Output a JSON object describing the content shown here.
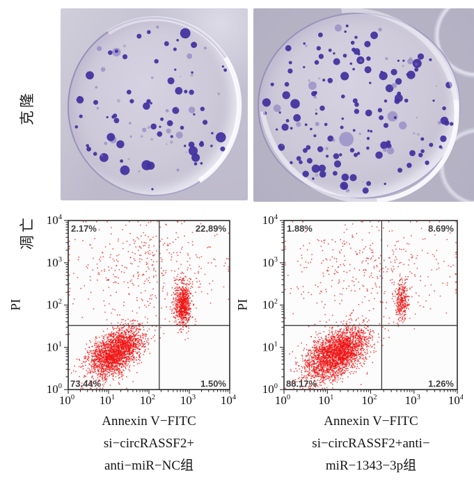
{
  "colors": {
    "colony": "#41309e",
    "colony_light": "#8578c2",
    "scatter_point": "#f11010",
    "axis": "#2b2b2b",
    "gate": "#3a3a3a",
    "quadrant_label": "#3e3e3e",
    "plot_bg": "#fdfcfc",
    "photo_bg": "#b9b6c7",
    "dish_fill": "#ccc8d7"
  },
  "clone_row": {
    "side_label": "克隆",
    "panels": [
      {
        "colony_count": 88,
        "seed": 11
      },
      {
        "colony_count": 158,
        "seed": 29
      }
    ]
  },
  "apoptosis_row": {
    "side_label": "凋亡",
    "tick_exponents": [
      0,
      1,
      2,
      3,
      4
    ],
    "plots": [
      {
        "y_axis_label": "PI",
        "quadrant_labels": {
          "ul": "2.17%",
          "ur": "22.89%",
          "ll": "73.44%",
          "lr": "1.50%"
        },
        "caption_lines": [
          "Annexin V−FITC",
          "si−circRASSF2+",
          "anti−miR−NC组"
        ]
      },
      {
        "y_axis_label": "PI",
        "quadrant_labels": {
          "ul": "1.88%",
          "ur": "8.69%",
          "ll": "88.17%",
          "lr": "1.26%"
        },
        "caption_lines": [
          "Annexin V−FITC",
          "si−circRASSF2+anti−",
          "miR−1343−3p组"
        ]
      }
    ]
  },
  "chart_data": [
    {
      "type": "scatter",
      "title": "si−circRASSF2+anti−miR−NC组",
      "xlabel": "Annexin V−FITC",
      "ylabel": "PI",
      "xscale": "log",
      "yscale": "log",
      "xlim": [
        1,
        10000
      ],
      "ylim": [
        1,
        10000
      ],
      "gates": {
        "x": 180,
        "y": 33
      },
      "quadrant_percentages": {
        "upper_left": 2.17,
        "upper_right": 22.89,
        "lower_left": 73.44,
        "lower_right": 1.5
      },
      "seed": 101,
      "series": [
        {
          "name": "live_cells",
          "center_log10": [
            1.18,
            0.88
          ],
          "sigma_log10": [
            0.34,
            0.3
          ],
          "corr": 0.5,
          "n": 2300
        },
        {
          "name": "late_apoptotic",
          "center_log10": [
            2.84,
            2.02
          ],
          "sigma_log10": [
            0.1,
            0.26
          ],
          "corr": 0,
          "n": 750
        },
        {
          "name": "background_scatter",
          "center_log10": [
            1.9,
            2.9
          ],
          "sigma_log10": [
            1.0,
            0.62
          ],
          "corr": 0,
          "n": 400
        }
      ]
    },
    {
      "type": "scatter",
      "title": "si−circRASSF2+anti−miR−1343−3p组",
      "xlabel": "Annexin V−FITC",
      "ylabel": "PI",
      "xscale": "log",
      "yscale": "log",
      "xlim": [
        1,
        10000
      ],
      "ylim": [
        1,
        10000
      ],
      "gates": {
        "x": 180,
        "y": 33
      },
      "quadrant_percentages": {
        "upper_left": 1.88,
        "upper_right": 8.69,
        "lower_left": 88.17,
        "lower_right": 1.26
      },
      "seed": 202,
      "series": [
        {
          "name": "live_cells",
          "center_log10": [
            1.22,
            0.85
          ],
          "sigma_log10": [
            0.36,
            0.31
          ],
          "corr": 0.5,
          "n": 2700
        },
        {
          "name": "late_apoptotic",
          "center_log10": [
            2.72,
            2.06
          ],
          "sigma_log10": [
            0.09,
            0.24
          ],
          "corr": 0,
          "n": 300
        },
        {
          "name": "background_scatter",
          "center_log10": [
            1.95,
            2.85
          ],
          "sigma_log10": [
            1.0,
            0.62
          ],
          "corr": 0,
          "n": 380
        }
      ]
    }
  ]
}
